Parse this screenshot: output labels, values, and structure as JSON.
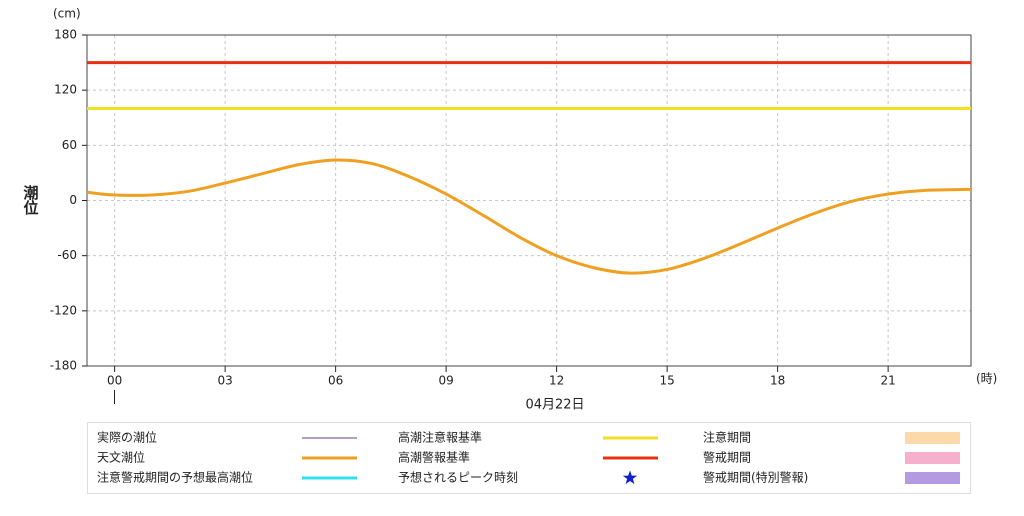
{
  "chart_data": {
    "type": "line",
    "y_label": "潮位",
    "y_unit": "(cm)",
    "x_unit": "(時)",
    "date_label": "04月22日",
    "xlim": [
      -0.75,
      23.25
    ],
    "ylim": [
      -180,
      180
    ],
    "xticks": [
      {
        "value": 0,
        "label": "00"
      },
      {
        "value": 3,
        "label": "03"
      },
      {
        "value": 6,
        "label": "06"
      },
      {
        "value": 9,
        "label": "09"
      },
      {
        "value": 12,
        "label": "12"
      },
      {
        "value": 15,
        "label": "15"
      },
      {
        "value": 18,
        "label": "18"
      },
      {
        "value": 21,
        "label": "21"
      }
    ],
    "yticks": [
      180,
      120,
      60,
      0,
      -60,
      -120,
      -180
    ],
    "grid": true,
    "x": [
      -0.75,
      0,
      1,
      2,
      3,
      4,
      5,
      6,
      7,
      8,
      9,
      10,
      11,
      12,
      13,
      14,
      15,
      16,
      17,
      18,
      19,
      20,
      21,
      22,
      23,
      23.25
    ],
    "series": [
      {
        "name": "実際の潮位",
        "color": "#9b7fb0",
        "style": "line"
      },
      {
        "name": "天文潮位",
        "color": "#f0a020",
        "style": "line",
        "values": [
          9,
          6,
          6,
          10,
          19,
          29,
          39,
          44,
          40,
          26,
          7,
          -16,
          -40,
          -60,
          -73,
          -79,
          -75,
          -63,
          -47,
          -30,
          -14,
          -1,
          7,
          11,
          12,
          12
        ]
      },
      {
        "name": "注意警戒期間の予想最高潮位",
        "color": "#30e0f0",
        "style": "line"
      },
      {
        "name": "高潮注意報基準",
        "color": "#f0e020",
        "style": "line",
        "level": 100
      },
      {
        "name": "高潮警報基準",
        "color": "#e83010",
        "style": "line",
        "level": 150
      },
      {
        "name": "予想されるピーク時刻",
        "color": "#1020d0",
        "style": "star"
      },
      {
        "name": "注意期間",
        "color": "#fbd9a8",
        "style": "box"
      },
      {
        "name": "警戒期間",
        "color": "#f7b0cc",
        "style": "box"
      },
      {
        "name": "警戒期間(特別警報)",
        "color": "#b49ae0",
        "style": "box"
      }
    ]
  }
}
